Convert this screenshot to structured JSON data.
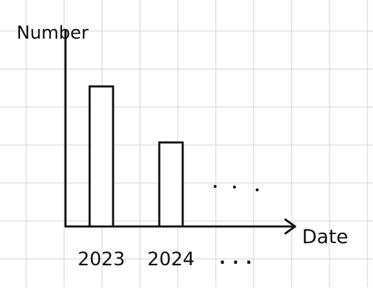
{
  "chart_data": {
    "type": "bar",
    "xlabel": "Date",
    "ylabel": "Number",
    "categories": [
      "2023",
      "2024"
    ],
    "values": [
      5,
      3
    ],
    "ylim": [
      0,
      7
    ],
    "continuation": "...",
    "grid": true
  },
  "colors": {
    "background": "#ffffff",
    "grid": "#d9d9d9",
    "ink": "#111111",
    "bar_fill": "#ffffff"
  }
}
